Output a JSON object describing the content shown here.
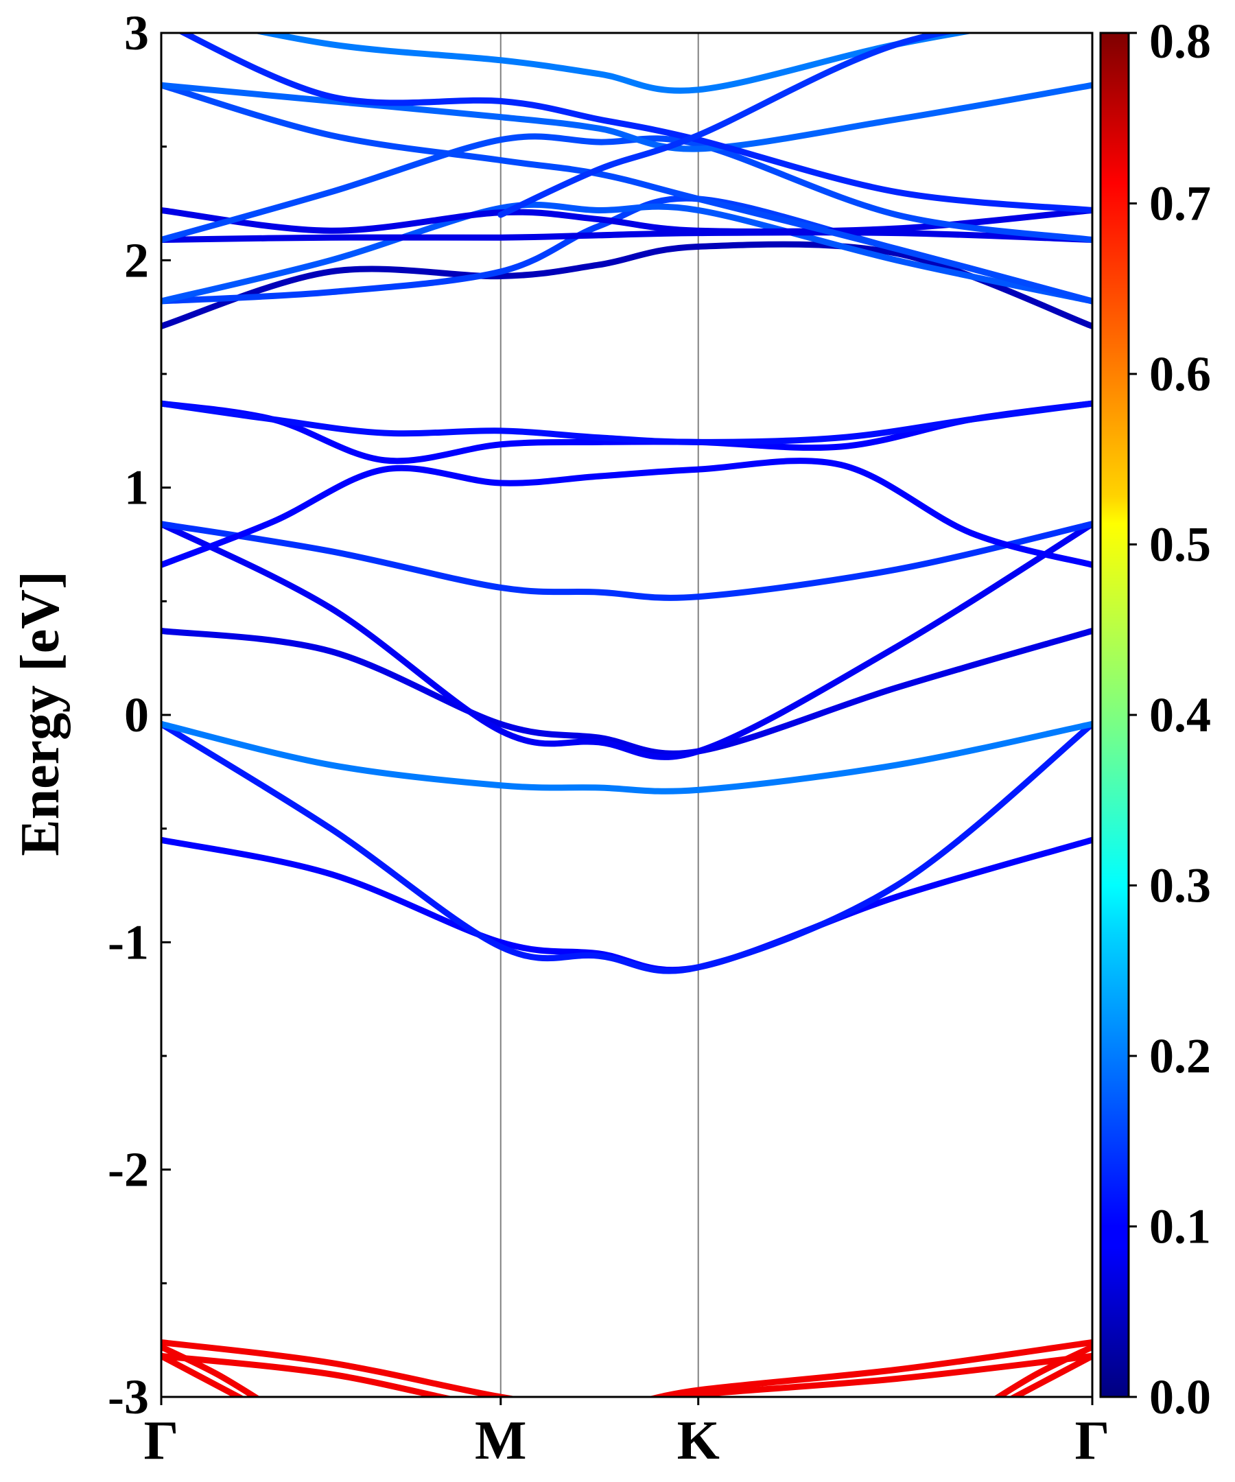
{
  "chart_data": {
    "type": "line",
    "subtype": "electronic band structure, color-projected",
    "title": "",
    "ylabel": "Energy [eV]",
    "xlabel": "",
    "ylim": [
      -3,
      3
    ],
    "yticks": [
      -3,
      -2,
      -1,
      0,
      1,
      2,
      3
    ],
    "ytick_labels": [
      "-3",
      "-2",
      "-1",
      "0",
      "1",
      "2",
      "3"
    ],
    "kpath": [
      {
        "label": "Γ",
        "x": 0.0
      },
      {
        "label": "M",
        "x": 0.3646
      },
      {
        "label": "K",
        "x": 0.5768
      },
      {
        "label": "Γ",
        "x": 1.0
      }
    ],
    "grid": false,
    "colorbar": {
      "colormap": "jet",
      "range": [
        0.0,
        0.8
      ],
      "ticks": [
        0.0,
        0.1,
        0.2,
        0.3,
        0.4,
        0.5,
        0.6,
        0.7,
        0.8
      ],
      "tick_labels": [
        "0.0",
        "0.1",
        "0.2",
        "0.3",
        "0.4",
        "0.5",
        "0.6",
        "0.7",
        "0.8"
      ]
    },
    "series": [
      {
        "x": [
          0,
          0.182,
          0.3646,
          0.47,
          0.5768,
          0.79,
          1.0
        ],
        "y": [
          -0.55,
          -0.7,
          -1.0,
          -1.05,
          -1.11,
          -0.8,
          -0.55
        ],
        "weight": 0.1
      },
      {
        "x": [
          0,
          0.182,
          0.3646,
          0.47,
          0.5768,
          0.79,
          1.0
        ],
        "y": [
          -0.04,
          -0.5,
          -1.02,
          -1.06,
          -1.11,
          -0.75,
          -0.04
        ],
        "weight": 0.12
      },
      {
        "x": [
          0,
          0.182,
          0.3646,
          0.47,
          0.5768,
          0.79,
          1.0
        ],
        "y": [
          -0.04,
          -0.22,
          -0.31,
          -0.32,
          -0.33,
          -0.22,
          -0.04
        ],
        "weight": 0.2
      },
      {
        "x": [
          0,
          0.182,
          0.3646,
          0.47,
          0.5768,
          0.79,
          1.0
        ],
        "y": [
          0.37,
          0.28,
          -0.04,
          -0.1,
          -0.16,
          0.12,
          0.37
        ],
        "weight": 0.07
      },
      {
        "x": [
          0,
          0.182,
          0.3646,
          0.47,
          0.5768,
          0.79,
          1.0
        ],
        "y": [
          0.84,
          0.47,
          -0.07,
          -0.12,
          -0.16,
          0.3,
          0.84
        ],
        "weight": 0.08
      },
      {
        "x": [
          0,
          0.182,
          0.3646,
          0.47,
          0.5768,
          0.79,
          1.0
        ],
        "y": [
          0.84,
          0.72,
          0.56,
          0.54,
          0.52,
          0.64,
          0.84
        ],
        "weight": 0.14
      },
      {
        "x": [
          0,
          0.12,
          0.24,
          0.3646,
          0.47,
          0.5768,
          0.73,
          0.87,
          1.0
        ],
        "y": [
          0.66,
          0.85,
          1.08,
          1.02,
          1.05,
          1.08,
          1.1,
          0.8,
          0.66
        ],
        "weight": 0.09
      },
      {
        "x": [
          0,
          0.12,
          0.24,
          0.3646,
          0.47,
          0.5768,
          0.73,
          0.87,
          1.0
        ],
        "y": [
          1.37,
          1.3,
          1.12,
          1.19,
          1.2,
          1.2,
          1.18,
          1.3,
          1.37
        ],
        "weight": 0.1
      },
      {
        "x": [
          0,
          0.12,
          0.24,
          0.3646,
          0.47,
          0.5768,
          0.73,
          0.87,
          1.0
        ],
        "y": [
          1.37,
          1.3,
          1.24,
          1.25,
          1.22,
          1.2,
          1.22,
          1.3,
          1.37
        ],
        "weight": 0.11
      },
      {
        "x": [
          0,
          0.182,
          0.3646,
          0.47,
          0.5768,
          0.79,
          1.0
        ],
        "y": [
          1.71,
          1.95,
          1.93,
          1.98,
          2.06,
          2.03,
          1.71
        ],
        "weight": 0.04
      },
      {
        "x": [
          0,
          0.182,
          0.3646,
          0.47,
          0.5768,
          0.79,
          1.0
        ],
        "y": [
          1.82,
          1.86,
          1.95,
          2.15,
          2.27,
          2.05,
          1.82
        ],
        "weight": 0.15
      },
      {
        "x": [
          0,
          0.182,
          0.3646,
          0.47,
          0.5768,
          0.79,
          1.0
        ],
        "y": [
          1.82,
          2.0,
          2.23,
          2.22,
          2.22,
          2.0,
          1.82
        ],
        "weight": 0.17
      },
      {
        "x": [
          0,
          0.182,
          0.3646,
          0.47,
          0.5768,
          0.79,
          1.0
        ],
        "y": [
          2.09,
          2.1,
          2.1,
          2.11,
          2.12,
          2.12,
          2.09
        ],
        "weight": 0.07
      },
      {
        "x": [
          0,
          0.182,
          0.3646,
          0.47,
          0.5768,
          0.79,
          1.0
        ],
        "y": [
          2.22,
          2.13,
          2.21,
          2.18,
          2.13,
          2.14,
          2.22
        ],
        "weight": 0.07
      },
      {
        "x": [
          0,
          0.182,
          0.3646,
          0.47,
          0.5768,
          0.79,
          1.0
        ],
        "y": [
          2.09,
          2.3,
          2.53,
          2.52,
          2.51,
          2.2,
          2.09
        ],
        "weight": 0.16
      },
      {
        "x": [
          0,
          0.182,
          0.3646,
          0.47,
          0.5768,
          0.79,
          1.0
        ],
        "y": [
          2.77,
          2.55,
          2.44,
          2.38,
          2.27,
          2.05,
          1.82
        ],
        "weight": 0.16
      },
      {
        "x": [
          0,
          0.182,
          0.3646,
          0.47,
          0.5768,
          0.79,
          1.0
        ],
        "y": [
          2.77,
          2.7,
          2.63,
          2.58,
          2.49,
          2.62,
          2.77
        ],
        "weight": 0.18
      },
      {
        "x": [
          0,
          0.182,
          0.3646,
          0.47,
          0.5768,
          0.79,
          1.0
        ],
        "y": [
          3.05,
          2.72,
          2.7,
          2.62,
          2.53,
          2.3,
          2.22
        ],
        "weight": 0.13
      },
      {
        "x": [
          0,
          0.182,
          0.3646,
          0.47,
          0.5768,
          0.79,
          1.0
        ],
        "y": [
          3.1,
          2.95,
          2.88,
          2.82,
          2.75,
          2.95,
          3.1
        ],
        "weight": 0.2
      },
      {
        "x": [
          0.3646,
          0.47,
          0.5768,
          0.79,
          1.0
        ],
        "y": [
          2.2,
          2.4,
          2.55,
          2.95,
          3.1
        ],
        "weight": 0.14
      },
      {
        "x": [
          0,
          0.182,
          0.3646,
          0.47,
          0.5768,
          0.79,
          1.0
        ],
        "y": [
          -2.76,
          -2.85,
          -3.0,
          -3.05,
          -2.97,
          -2.88,
          -2.76
        ],
        "weight": 0.72
      },
      {
        "x": [
          0,
          0.182,
          0.3646,
          0.47,
          0.5768,
          0.79,
          1.0
        ],
        "y": [
          -2.82,
          -2.9,
          -3.05,
          -3.05,
          -2.99,
          -2.92,
          -2.82
        ],
        "weight": 0.72
      },
      {
        "x": [
          0,
          0.06,
          0.12
        ],
        "y": [
          -2.78,
          -2.9,
          -3.05
        ],
        "weight": 0.72
      },
      {
        "x": [
          0,
          0.06,
          0.12
        ],
        "y": [
          -2.82,
          -2.95,
          -3.08
        ],
        "weight": 0.72
      },
      {
        "x": [
          0.88,
          0.94,
          1.0
        ],
        "y": [
          -3.05,
          -2.9,
          -2.78
        ],
        "weight": 0.72
      },
      {
        "x": [
          0.88,
          0.94,
          1.0
        ],
        "y": [
          -3.08,
          -2.95,
          -2.82
        ],
        "weight": 0.72
      }
    ]
  }
}
